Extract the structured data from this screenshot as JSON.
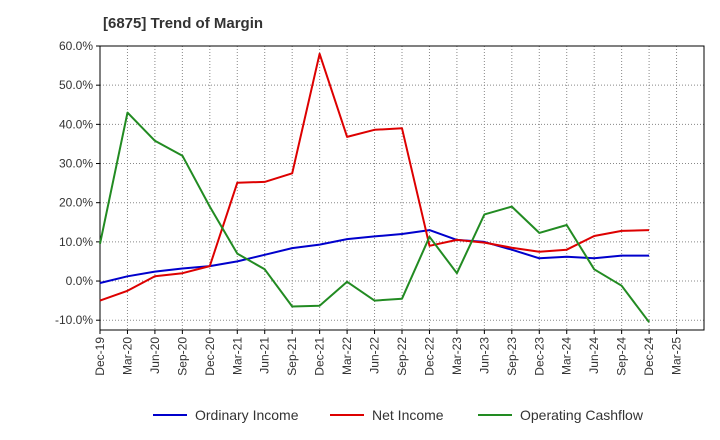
{
  "chart_data": {
    "type": "line",
    "title": "[6875]  Trend of Margin",
    "xlabel": "",
    "ylabel": "",
    "x": [
      "Dec-19",
      "Mar-20",
      "Jun-20",
      "Sep-20",
      "Dec-20",
      "Mar-21",
      "Jun-21",
      "Sep-21",
      "Dec-21",
      "Mar-22",
      "Jun-22",
      "Sep-22",
      "Dec-22",
      "Mar-23",
      "Jun-23",
      "Sep-23",
      "Dec-23",
      "Mar-24",
      "Jun-24",
      "Sep-24",
      "Dec-24",
      "Mar-25"
    ],
    "ylim": [
      -12.5,
      60
    ],
    "yticks": [
      -10,
      0,
      10,
      20,
      30,
      40,
      50,
      60
    ],
    "ytick_labels": [
      "-10.0%",
      "0.0%",
      "10.0%",
      "20.0%",
      "30.0%",
      "40.0%",
      "50.0%",
      "60.0%"
    ],
    "grid": true,
    "legend_position": "bottom",
    "series": [
      {
        "name": "Ordinary Income",
        "color": "#0000cc",
        "values": [
          -0.5,
          1.2,
          2.4,
          3.2,
          3.8,
          5.0,
          6.7,
          8.4,
          9.3,
          10.7,
          11.4,
          12.0,
          13.0,
          10.5,
          10.0,
          8.0,
          5.8,
          6.2,
          5.8,
          6.5,
          6.5,
          null
        ]
      },
      {
        "name": "Net Income",
        "color": "#dd0000",
        "values": [
          -5.0,
          -2.5,
          1.2,
          2.0,
          3.8,
          25.1,
          25.3,
          27.5,
          58.0,
          36.8,
          38.6,
          39.0,
          9.0,
          10.5,
          9.8,
          8.5,
          7.5,
          8.0,
          11.5,
          12.8,
          13.0,
          null
        ]
      },
      {
        "name": "Operating Cashflow",
        "color": "#228b22",
        "values": [
          9.5,
          43.0,
          35.8,
          32.0,
          19.0,
          7.0,
          3.0,
          -6.5,
          -6.3,
          -0.2,
          -5.0,
          -4.5,
          11.3,
          2.0,
          17.0,
          19.0,
          12.3,
          14.3,
          3.0,
          -1.2,
          -10.5,
          null
        ]
      }
    ]
  }
}
